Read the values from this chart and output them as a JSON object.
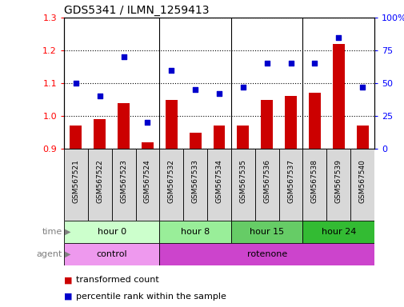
{
  "title": "GDS5341 / ILMN_1259413",
  "samples": [
    "GSM567521",
    "GSM567522",
    "GSM567523",
    "GSM567524",
    "GSM567532",
    "GSM567533",
    "GSM567534",
    "GSM567535",
    "GSM567536",
    "GSM567537",
    "GSM567538",
    "GSM567539",
    "GSM567540"
  ],
  "transformed_count": [
    0.97,
    0.99,
    1.04,
    0.92,
    1.05,
    0.95,
    0.97,
    0.97,
    1.05,
    1.06,
    1.07,
    1.22,
    0.97
  ],
  "percentile_rank": [
    50,
    40,
    70,
    20,
    60,
    45,
    42,
    47,
    65,
    65,
    65,
    85,
    47
  ],
  "ylim_left": [
    0.9,
    1.3
  ],
  "ylim_right": [
    0,
    100
  ],
  "yticks_left": [
    0.9,
    1.0,
    1.1,
    1.2,
    1.3
  ],
  "yticks_right": [
    0,
    25,
    50,
    75,
    100
  ],
  "ytick_labels_right": [
    "0",
    "25",
    "50",
    "75",
    "100%"
  ],
  "bar_color": "#cc0000",
  "scatter_color": "#0000cc",
  "time_groups": [
    {
      "label": "hour 0",
      "start": 0,
      "end": 4,
      "color": "#ccffcc"
    },
    {
      "label": "hour 8",
      "start": 4,
      "end": 7,
      "color": "#99ee99"
    },
    {
      "label": "hour 15",
      "start": 7,
      "end": 10,
      "color": "#66cc66"
    },
    {
      "label": "hour 24",
      "start": 10,
      "end": 13,
      "color": "#33bb33"
    }
  ],
  "agent_groups": [
    {
      "label": "control",
      "start": 0,
      "end": 4,
      "color": "#ee99ee"
    },
    {
      "label": "rotenone",
      "start": 4,
      "end": 13,
      "color": "#cc44cc"
    }
  ],
  "group_separators": [
    3.5,
    6.5,
    9.5
  ],
  "legend_red": "transformed count",
  "legend_blue": "percentile rank within the sample",
  "xlabel_time": "time",
  "xlabel_agent": "agent"
}
